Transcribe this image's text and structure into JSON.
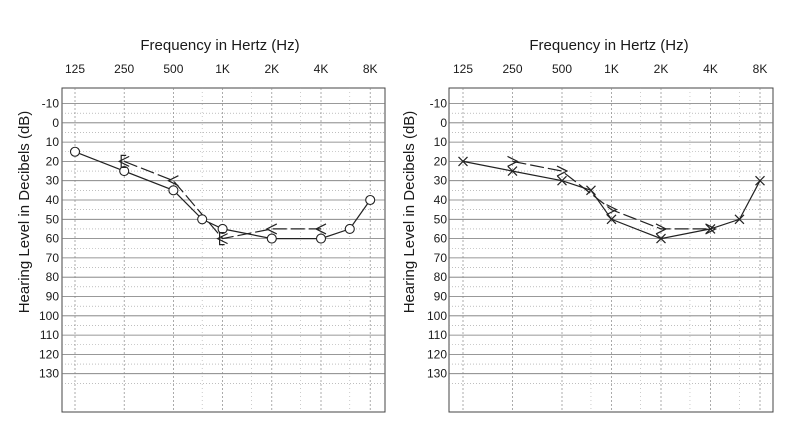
{
  "chart_data": [
    {
      "type": "line",
      "title": "Frequency in Hertz (Hz)",
      "xlabel": "Frequency in Hertz (Hz)",
      "ylabel": "Hearing Level in Decibels (dB)",
      "x_ticks": [
        "125",
        "250",
        "500",
        "1K",
        "2K",
        "4K",
        "8K"
      ],
      "x_ticks_hz": [
        125,
        250,
        500,
        1000,
        2000,
        4000,
        8000
      ],
      "x_scale": "log2",
      "y_ticks": [
        "-10",
        "0",
        "10",
        "20",
        "30",
        "40",
        "50",
        "60",
        "70",
        "80",
        "90",
        "100",
        "110",
        "120",
        "130"
      ],
      "y_ticks_db": [
        -10,
        0,
        10,
        20,
        30,
        40,
        50,
        60,
        70,
        80,
        90,
        100,
        110,
        120,
        130
      ],
      "ylim": [
        130,
        -10
      ],
      "y_inverted": true,
      "grid": true,
      "series": [
        {
          "symbol": "O",
          "points": [
            [
              125,
              15
            ],
            [
              250,
              25
            ],
            [
              500,
              35
            ],
            [
              750,
              50
            ],
            [
              1000,
              55
            ],
            [
              2000,
              60
            ],
            [
              4000,
              60
            ],
            [
              6000,
              55
            ],
            [
              8000,
              40
            ]
          ]
        },
        {
          "symbol": "<",
          "points": [
            [
              250,
              20
            ],
            [
              500,
              30
            ],
            [
              1000,
              60
            ],
            [
              2000,
              55
            ],
            [
              4000,
              55
            ]
          ]
        },
        {
          "symbol": "[",
          "points": [
            [
              250,
              20
            ],
            [
              1000,
              60
            ]
          ]
        }
      ]
    },
    {
      "type": "line",
      "title": "Frequency in Hertz (Hz)",
      "xlabel": "Frequency in Hertz (Hz)",
      "ylabel": "Hearing Level in Decibels (dB)",
      "x_ticks": [
        "125",
        "250",
        "500",
        "1K",
        "2K",
        "4K",
        "8K"
      ],
      "x_ticks_hz": [
        125,
        250,
        500,
        1000,
        2000,
        4000,
        8000
      ],
      "x_scale": "log2",
      "y_ticks": [
        "-10",
        "0",
        "10",
        "20",
        "30",
        "40",
        "50",
        "60",
        "70",
        "80",
        "90",
        "100",
        "110",
        "120",
        "130"
      ],
      "y_ticks_db": [
        -10,
        0,
        10,
        20,
        30,
        40,
        50,
        60,
        70,
        80,
        90,
        100,
        110,
        120,
        130
      ],
      "ylim": [
        130,
        -10
      ],
      "y_inverted": true,
      "grid": true,
      "series": [
        {
          "symbol": "X",
          "points": [
            [
              125,
              20
            ],
            [
              250,
              25
            ],
            [
              500,
              30
            ],
            [
              750,
              35
            ],
            [
              1000,
              50
            ],
            [
              2000,
              60
            ],
            [
              4000,
              55
            ],
            [
              6000,
              50
            ],
            [
              8000,
              30
            ]
          ]
        },
        {
          "symbol": ">",
          "points": [
            [
              250,
              20
            ],
            [
              500,
              25
            ],
            [
              1000,
              45
            ],
            [
              2000,
              55
            ],
            [
              4000,
              55
            ]
          ]
        }
      ]
    }
  ]
}
